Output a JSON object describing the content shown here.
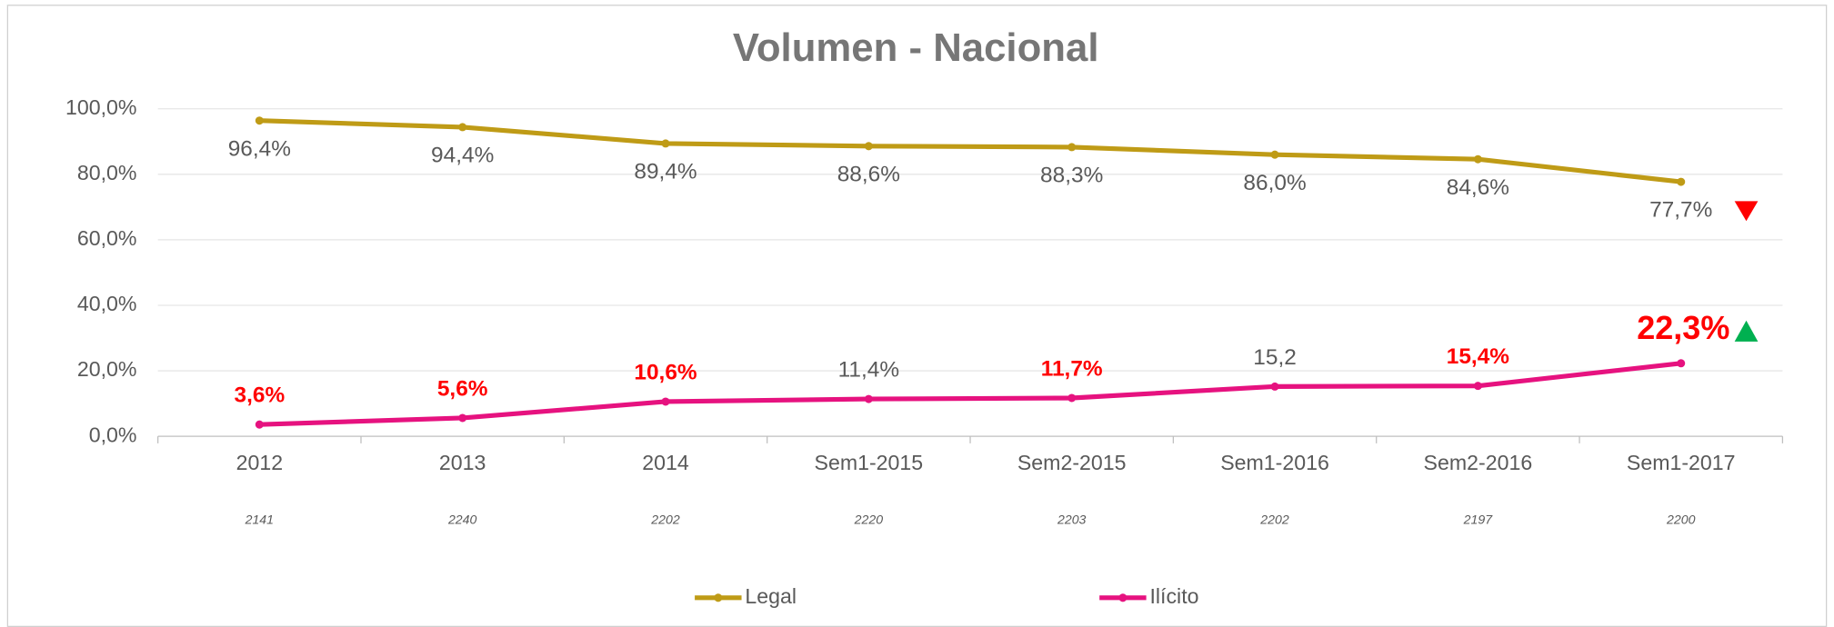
{
  "chart_data": {
    "type": "line",
    "title": "Volumen - Nacional",
    "categories": [
      "2012",
      "2013",
      "2014",
      "Sem1-2015",
      "Sem2-2015",
      "Sem1-2016",
      "Sem2-2016",
      "Sem1-2017"
    ],
    "sample_sizes": [
      2141,
      2240,
      2202,
      2220,
      2203,
      2202,
      2197,
      2200
    ],
    "ylim": [
      0,
      100
    ],
    "yticks": [
      {
        "value": 0,
        "label": "0,0%"
      },
      {
        "value": 20,
        "label": "20,0%"
      },
      {
        "value": 40,
        "label": "40,0%"
      },
      {
        "value": 60,
        "label": "60,0%"
      },
      {
        "value": 80,
        "label": "80,0%"
      },
      {
        "value": 100,
        "label": "100,0%"
      }
    ],
    "grid": true,
    "legend": "bottom",
    "series": [
      {
        "name": "Legal",
        "color": "#bf9b16",
        "values": [
          96.4,
          94.4,
          89.4,
          88.6,
          88.3,
          86.0,
          84.6,
          77.7
        ],
        "value_labels": [
          "96,4%",
          "94,4%",
          "89,4%",
          "88,6%",
          "88,3%",
          "86,0%",
          "84,6%",
          "77,7%"
        ],
        "value_label_colors": [
          "#595959",
          "#595959",
          "#595959",
          "#595959",
          "#595959",
          "#595959",
          "#595959",
          "#595959"
        ]
      },
      {
        "name": "Ilícito",
        "color": "#e6127f",
        "values": [
          3.6,
          5.6,
          10.6,
          11.4,
          11.7,
          15.2,
          15.4,
          22.3
        ],
        "value_labels": [
          "3,6%",
          "5,6%",
          "10,6%",
          "11,4%",
          "11,7%",
          "15,2",
          "15,4%",
          "22,3%"
        ],
        "value_label_colors": [
          "#ff0000",
          "#ff0000",
          "#ff0000",
          "#595959",
          "#ff0000",
          "#595959",
          "#ff0000",
          "#ff0000"
        ]
      }
    ]
  }
}
